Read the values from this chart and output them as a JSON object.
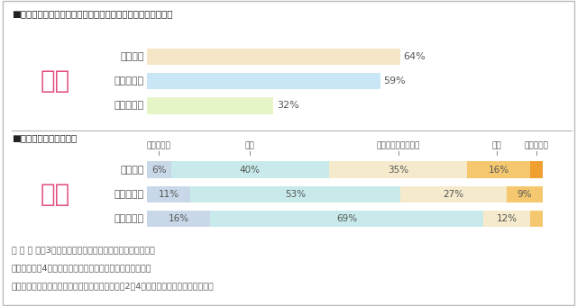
{
  "title1": "■不安な状況の遭遇経験（実際に遭ったことがある人の割合）",
  "title2": "■現在の住まいの安全性",
  "gender_label": "女性",
  "categories": [
    "一般低層",
    "一般中高層",
    "防犯メゾン"
  ],
  "encounter_values": [
    64,
    59,
    32
  ],
  "encounter_bar_colors": [
    "#F5E6C8",
    "#C8E6F5",
    "#E6F5C8"
  ],
  "safety_data": [
    [
      6,
      40,
      35,
      16,
      3
    ],
    [
      11,
      53,
      27,
      9,
      0
    ],
    [
      16,
      69,
      12,
      3,
      0
    ]
  ],
  "safety_colors": [
    "#C8D8E8",
    "#C8EAEA",
    "#F5EACC",
    "#F5C870",
    "#F0A030"
  ],
  "safety_labels": [
    "非常に安全",
    "安全",
    "どちらとも言えない",
    "危険",
    "非常に危険"
  ],
  "footnote1": "一 般 低 層：3階建て以下の集合住宅の単独居住者（女性）",
  "footnote2": "一般中高層：4階建て以上の集合住宅の単独居住者（女性）",
  "footnote3": "防犯メゾン：防犯に配慮されたヘーベルメゾン（2〜4階建て）の単独居住者（女性）",
  "bg_color": "#FFFFFF",
  "border_color": "#CCCCCC",
  "gender_color": "#E05080",
  "title_color": "#222222",
  "text_color": "#555555",
  "bar_max": 100
}
